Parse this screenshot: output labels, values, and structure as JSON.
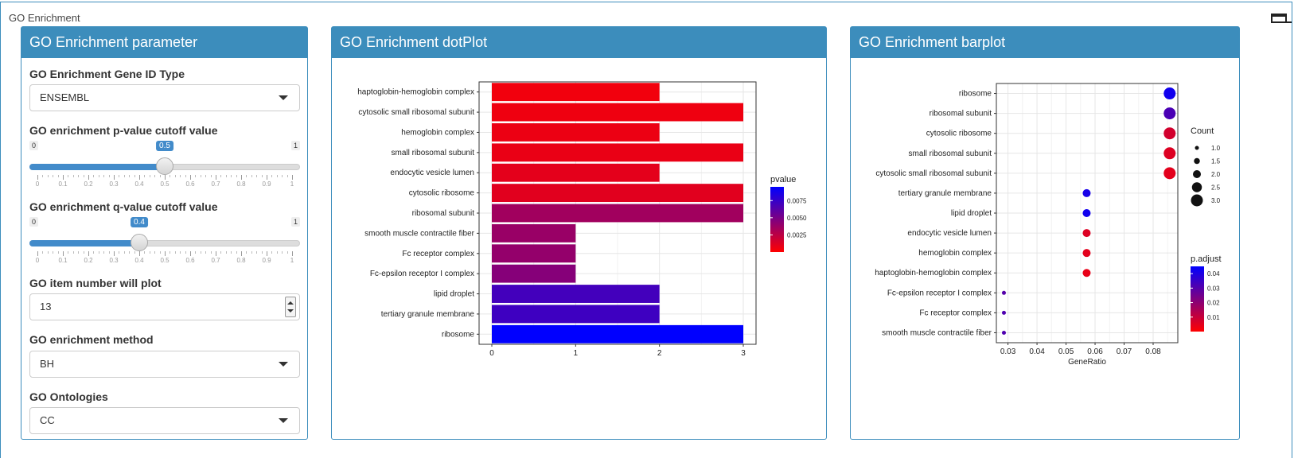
{
  "outer": {
    "title": "GO Enrichment"
  },
  "panels": {
    "param_title": "GO Enrichment parameter",
    "dot_title": "GO Enrichment dotPlot",
    "bar_title": "GO Enrichment barplot"
  },
  "params": {
    "gene_id_type": {
      "label": "GO Enrichment Gene ID Type",
      "value": "ENSEMBL"
    },
    "pvalue": {
      "label": "GO enrichment p-value cutoff value",
      "min": "0",
      "max": "1",
      "value": 0.5,
      "value_label": "0.5"
    },
    "qvalue": {
      "label": "GO enrichment q-value cutoff value",
      "min": "0",
      "max": "1",
      "value": 0.4,
      "value_label": "0.4"
    },
    "slider_ticks": [
      "0",
      "0.1",
      "0.2",
      "0.3",
      "0.4",
      "0.5",
      "0.6",
      "0.7",
      "0.8",
      "0.9",
      "1"
    ],
    "item_number": {
      "label": "GO item number will plot",
      "value": "13"
    },
    "method": {
      "label": "GO enrichment method",
      "value": "BH"
    },
    "ontologies": {
      "label": "GO Ontologies",
      "value": "CC"
    }
  },
  "chart_data": [
    {
      "type": "bar",
      "orientation": "horizontal",
      "categories": [
        "haptoglobin-hemoglobin complex",
        "cytosolic small ribosomal subunit",
        "hemoglobin complex",
        "small ribosomal subunit",
        "endocytic vesicle lumen",
        "cytosolic ribosome",
        "ribosomal subunit",
        "smooth muscle contractile fiber",
        "Fc receptor complex",
        "Fc-epsilon receptor I complex",
        "lipid droplet",
        "tertiary granule membrane",
        "ribosome"
      ],
      "values": [
        2,
        3,
        2,
        3,
        2,
        3,
        3,
        1,
        1,
        1,
        2,
        2,
        3
      ],
      "color_values": [
        0.0005,
        0.0006,
        0.0007,
        0.0008,
        0.001,
        0.0011,
        0.0035,
        0.0038,
        0.004,
        0.0045,
        0.007,
        0.0072,
        0.0095
      ],
      "xlim": [
        0,
        3
      ],
      "xticks": [
        "0",
        "1",
        "2",
        "3"
      ],
      "legend": {
        "title": "pvalue",
        "ticks": [
          "0.0075",
          "0.0050",
          "0.0025"
        ],
        "low_color": "#ff0000",
        "high_color": "#0000ff",
        "range": [
          0.0,
          0.0095
        ]
      },
      "grid": true
    },
    {
      "type": "scatter",
      "categories": [
        "ribosome",
        "ribosomal subunit",
        "cytosolic ribosome",
        "small ribosomal subunit",
        "cytosolic small ribosomal subunit",
        "tertiary granule membrane",
        "lipid droplet",
        "endocytic vesicle lumen",
        "hemoglobin complex",
        "haptoglobin-hemoglobin complex",
        "Fc-epsilon receptor I complex",
        "Fc receptor complex",
        "smooth muscle contractile fiber"
      ],
      "x": [
        0.0857,
        0.0857,
        0.0857,
        0.0857,
        0.0857,
        0.0571,
        0.0571,
        0.0571,
        0.0571,
        0.0571,
        0.0286,
        0.0286,
        0.0286
      ],
      "counts": [
        3,
        3,
        3,
        3,
        3,
        2,
        2,
        2,
        2,
        2,
        1,
        1,
        1
      ],
      "p_adjust": [
        0.042,
        0.032,
        0.008,
        0.006,
        0.005,
        0.041,
        0.042,
        0.006,
        0.005,
        0.004,
        0.03,
        0.031,
        0.031
      ],
      "xlabel": "GeneRatio",
      "xlim": [
        0.026,
        0.0885
      ],
      "xticks": [
        0.03,
        0.04,
        0.05,
        0.06,
        0.07,
        0.08
      ],
      "xtick_labels": [
        "0.03",
        "0.04",
        "0.05",
        "0.06",
        "0.07",
        "0.08"
      ],
      "legend_count": {
        "title": "Count",
        "values": [
          1.0,
          1.5,
          2.0,
          2.5,
          3.0
        ],
        "labels": [
          "1.0",
          "1.5",
          "2.0",
          "2.5",
          "3.0"
        ]
      },
      "legend_padj": {
        "title": "p.adjust",
        "ticks": [
          "0.04",
          "0.03",
          "0.02",
          "0.01"
        ],
        "low_color": "#ff0000",
        "high_color": "#0000ff",
        "range": [
          0.0,
          0.045
        ]
      },
      "grid": true
    }
  ]
}
